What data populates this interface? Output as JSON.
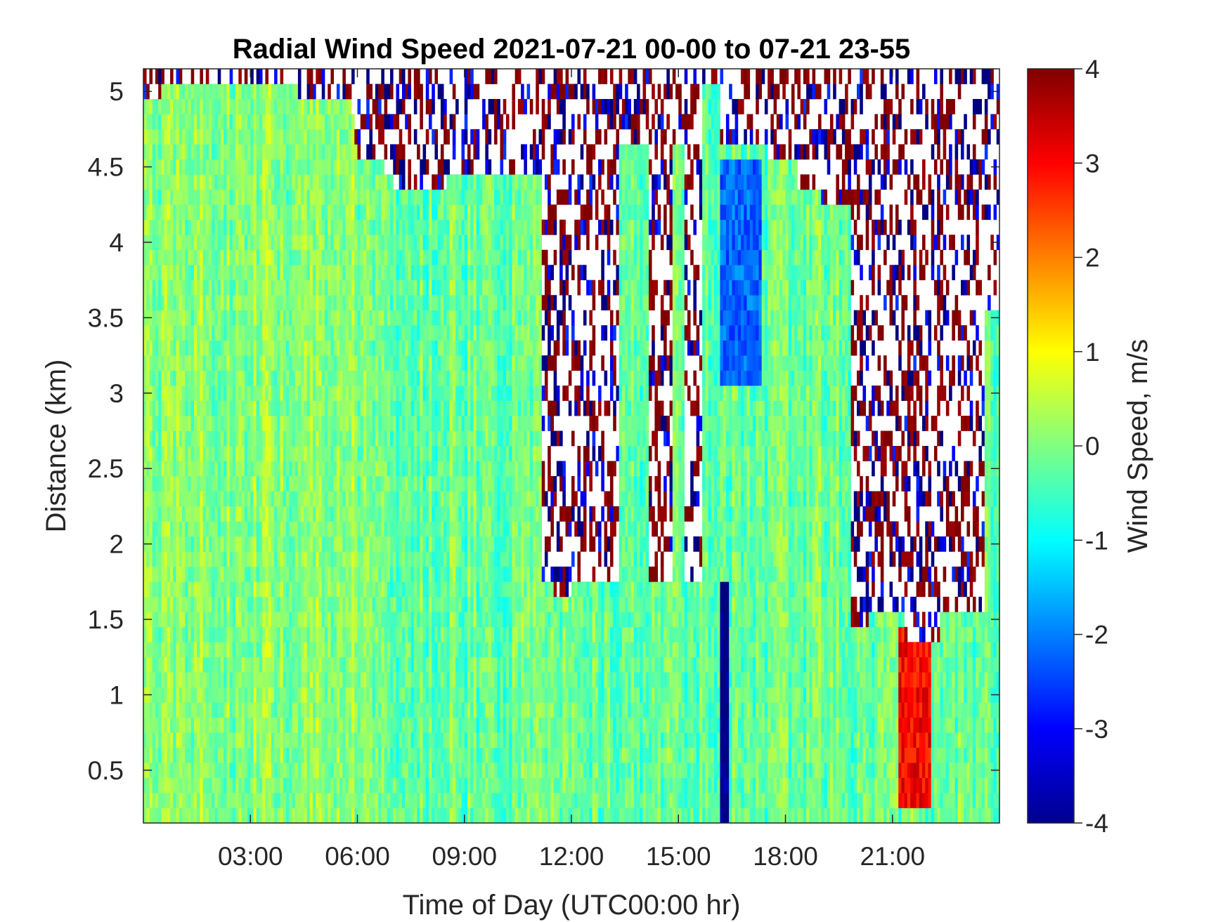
{
  "chart_data": {
    "type": "heatmap",
    "title": "Radial Wind Speed 2021-07-21 00-00 to 07-21 23-55",
    "xlabel": "Time of Day (UTC00:00 hr)",
    "ylabel": "Distance (km)",
    "colorbar_label": "Wind Speed, m/s",
    "colormap": "jet",
    "xlim_hours": [
      0,
      24
    ],
    "ylim": [
      0.15,
      5.15
    ],
    "clim": [
      -4,
      4
    ],
    "x_ticks": [
      {
        "hour": 3,
        "label": "03:00"
      },
      {
        "hour": 6,
        "label": "06:00"
      },
      {
        "hour": 9,
        "label": "09:00"
      },
      {
        "hour": 12,
        "label": "12:00"
      },
      {
        "hour": 15,
        "label": "15:00"
      },
      {
        "hour": 18,
        "label": "18:00"
      },
      {
        "hour": 21,
        "label": "21:00"
      }
    ],
    "y_ticks": [
      {
        "value": 0.5,
        "label": "0.5"
      },
      {
        "value": 1,
        "label": "1"
      },
      {
        "value": 1.5,
        "label": "1.5"
      },
      {
        "value": 2,
        "label": "2"
      },
      {
        "value": 2.5,
        "label": "2.5"
      },
      {
        "value": 3,
        "label": "3"
      },
      {
        "value": 3.5,
        "label": "3.5"
      },
      {
        "value": 4,
        "label": "4"
      },
      {
        "value": 4.5,
        "label": "4.5"
      },
      {
        "value": 5,
        "label": "5"
      }
    ],
    "colorbar_ticks": [
      {
        "value": 4,
        "label": "4"
      },
      {
        "value": 3,
        "label": "3"
      },
      {
        "value": 2,
        "label": "2"
      },
      {
        "value": 1,
        "label": "1"
      },
      {
        "value": 0,
        "label": "0"
      },
      {
        "value": -1,
        "label": "-1"
      },
      {
        "value": -2,
        "label": "-2"
      },
      {
        "value": -3,
        "label": "-3"
      },
      {
        "value": -4,
        "label": "-4"
      }
    ],
    "valid_data_top_km": [
      {
        "from_hour": 0.0,
        "to_hour": 0.5,
        "top_km": 4.95
      },
      {
        "from_hour": 0.5,
        "to_hour": 4.3,
        "top_km": 5.05
      },
      {
        "from_hour": 4.3,
        "to_hour": 5.8,
        "top_km": 4.95
      },
      {
        "from_hour": 5.8,
        "to_hour": 5.9,
        "top_km": 4.85
      },
      {
        "from_hour": 5.9,
        "to_hour": 6.0,
        "top_km": 4.65
      },
      {
        "from_hour": 6.0,
        "to_hour": 6.75,
        "top_km": 4.55
      },
      {
        "from_hour": 6.75,
        "to_hour": 7.0,
        "top_km": 4.45
      },
      {
        "from_hour": 7.0,
        "to_hour": 8.5,
        "top_km": 4.35
      },
      {
        "from_hour": 8.5,
        "to_hour": 11.2,
        "top_km": 4.45
      },
      {
        "from_hour": 11.2,
        "to_hour": 11.5,
        "top_km": 1.75
      },
      {
        "from_hour": 11.5,
        "to_hour": 12.0,
        "top_km": 1.65
      },
      {
        "from_hour": 12.0,
        "to_hour": 13.3,
        "top_km": 1.75
      },
      {
        "from_hour": 13.3,
        "to_hour": 14.2,
        "top_km": 4.65
      },
      {
        "from_hour": 14.2,
        "to_hour": 14.8,
        "top_km": 1.75
      },
      {
        "from_hour": 14.8,
        "to_hour": 15.2,
        "top_km": 4.65
      },
      {
        "from_hour": 15.2,
        "to_hour": 15.7,
        "top_km": 1.75
      },
      {
        "from_hour": 15.7,
        "to_hour": 16.2,
        "top_km": 5.05
      },
      {
        "from_hour": 16.2,
        "to_hour": 17.5,
        "top_km": 4.65
      },
      {
        "from_hour": 17.5,
        "to_hour": 18.3,
        "top_km": 4.55
      },
      {
        "from_hour": 18.3,
        "to_hour": 19.0,
        "top_km": 4.35
      },
      {
        "from_hour": 19.0,
        "to_hour": 19.8,
        "top_km": 4.25
      },
      {
        "from_hour": 19.8,
        "to_hour": 20.3,
        "top_km": 1.45
      },
      {
        "from_hour": 20.3,
        "to_hour": 21.3,
        "top_km": 1.55
      },
      {
        "from_hour": 21.3,
        "to_hour": 22.3,
        "top_km": 1.35
      },
      {
        "from_hour": 22.3,
        "to_hour": 23.6,
        "top_km": 1.55
      },
      {
        "from_hour": 23.6,
        "to_hour": 24.0,
        "top_km": 3.55
      }
    ],
    "features": [
      {
        "name": "strong negative radial wind streak",
        "hour_range": [
          16.2,
          16.4
        ],
        "km_range": [
          0.15,
          1.7
        ],
        "value_m_s": -4
      },
      {
        "name": "negative wind region aloft",
        "hour_range": [
          16.2,
          17.3
        ],
        "km_range": [
          3.1,
          4.6
        ],
        "value_m_s": -2.2
      },
      {
        "name": "positive wind streaks near surface",
        "hour_range": [
          21.2,
          22.1
        ],
        "km_range": [
          0.3,
          1.4
        ],
        "value_m_s": 3
      }
    ]
  }
}
